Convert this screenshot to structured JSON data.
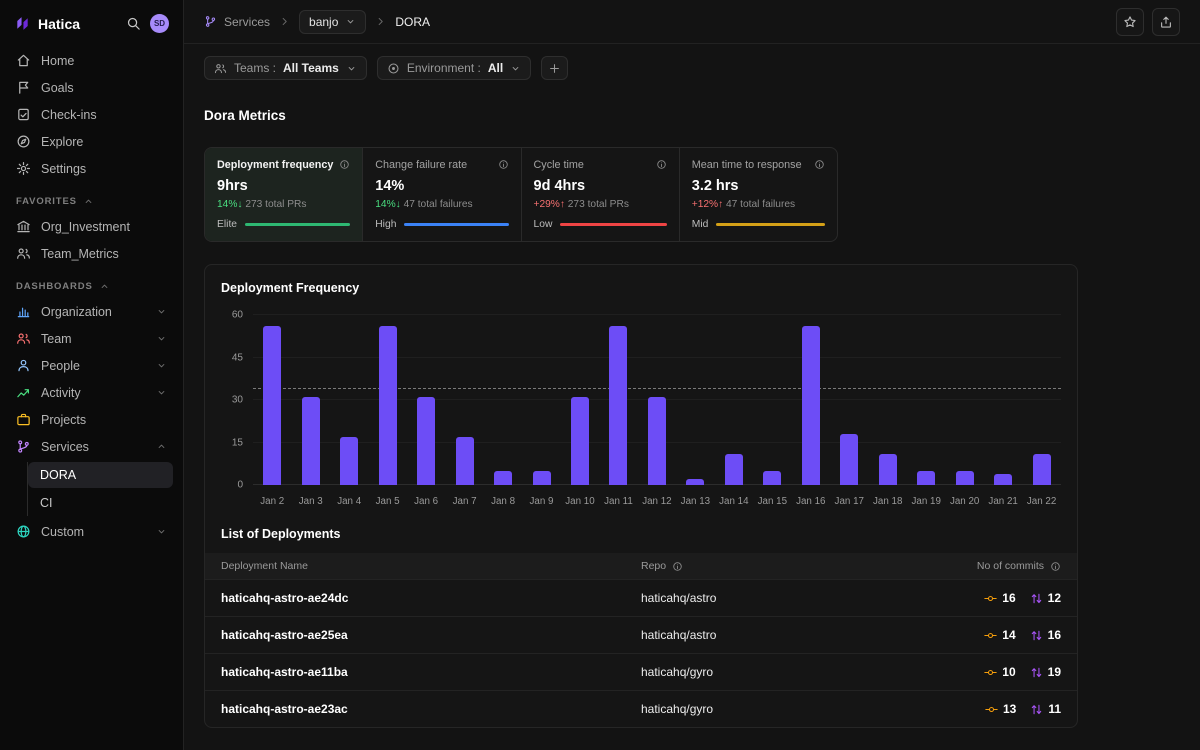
{
  "app": {
    "name": "Hatica",
    "avatar_initials": "SD"
  },
  "breadcrumb": {
    "section": "Services",
    "team": "banjo",
    "page": "DORA"
  },
  "filters": {
    "teams_label": "Teams :",
    "teams_value": "All Teams",
    "env_label": "Environment :",
    "env_value": "All"
  },
  "page": {
    "title": "Dora Metrics"
  },
  "sidebar": {
    "nav": [
      {
        "label": "Home",
        "icon": "home"
      },
      {
        "label": "Goals",
        "icon": "flag"
      },
      {
        "label": "Check-ins",
        "icon": "checkins"
      },
      {
        "label": "Explore",
        "icon": "explore"
      },
      {
        "label": "Settings",
        "icon": "gear"
      }
    ],
    "favorites": {
      "label": "FAVORITES",
      "items": [
        {
          "label": "Org_Investment",
          "icon": "bank"
        },
        {
          "label": "Team_Metrics",
          "icon": "users"
        }
      ]
    },
    "dashboards": {
      "label": "DASHBOARDS",
      "items": [
        {
          "label": "Organization",
          "icon": "org",
          "color": "#60a5fa",
          "expandable": true,
          "expanded": false
        },
        {
          "label": "Team",
          "icon": "team",
          "color": "#f87171",
          "expandable": true,
          "expanded": false
        },
        {
          "label": "People",
          "icon": "person",
          "color": "#93c5fd",
          "expandable": true,
          "expanded": false
        },
        {
          "label": "Activity",
          "icon": "activity",
          "color": "#4ade80",
          "expandable": true,
          "expanded": false
        },
        {
          "label": "Projects",
          "icon": "briefcase",
          "color": "#fbbf24",
          "expandable": false,
          "expanded": false
        },
        {
          "label": "Services",
          "icon": "branch",
          "color": "#c084fc",
          "expandable": true,
          "expanded": true,
          "children": [
            {
              "label": "DORA",
              "active": true
            },
            {
              "label": "CI",
              "active": false
            }
          ]
        },
        {
          "label": "Custom",
          "icon": "globe",
          "color": "#2dd4bf",
          "expandable": true,
          "expanded": false
        }
      ]
    }
  },
  "cards": [
    {
      "title": "Deployment frequency",
      "value": "9hrs",
      "delta": "14%",
      "delta_dir": "down",
      "subtext": "273 total PRs",
      "tier": "Elite",
      "tier_color": "#2eb872",
      "selected": true
    },
    {
      "title": "Change failure rate",
      "value": "14%",
      "delta": "14%",
      "delta_dir": "down",
      "subtext": "47 total failures",
      "tier": "High",
      "tier_color": "#3b82f6",
      "selected": false
    },
    {
      "title": "Cycle time",
      "value": "9d 4hrs",
      "delta": "+29%",
      "delta_dir": "up",
      "subtext": "273 total PRs",
      "tier": "Low",
      "tier_color": "#ef4444",
      "selected": false
    },
    {
      "title": "Mean time to response",
      "value": "3.2 hrs",
      "delta": "+12%",
      "delta_dir": "up",
      "subtext": "47 total failures",
      "tier": "Mid",
      "tier_color": "#d4a017",
      "selected": false
    }
  ],
  "chart_data": {
    "type": "bar",
    "title": "Deployment Frequency",
    "categories": [
      "Jan 2",
      "Jan 3",
      "Jan 4",
      "Jan 5",
      "Jan 6",
      "Jan 7",
      "Jan 8",
      "Jan 9",
      "Jan 10",
      "Jan 11",
      "Jan 12",
      "Jan 13",
      "Jan 14",
      "Jan 15",
      "Jan 16",
      "Jan 17",
      "Jan 18",
      "Jan 19",
      "Jan 20",
      "Jan 21",
      "Jan 22"
    ],
    "values": [
      56,
      31,
      17,
      56,
      31,
      17,
      5,
      5,
      31,
      56,
      31,
      2,
      11,
      5,
      56,
      18,
      11,
      5,
      5,
      4,
      11
    ],
    "xlabel": "",
    "ylabel": "",
    "ylim": [
      0,
      60
    ],
    "yticks": [
      0,
      15,
      30,
      45,
      60
    ],
    "avg_line": 34,
    "bar_color": "#6d4df6",
    "grid": true,
    "legend": false
  },
  "deployments": {
    "title": "List of Deployments",
    "columns": [
      "Deployment Name",
      "Repo",
      "No of commits"
    ],
    "commit_icon_color": "#f59e0b",
    "pr_icon_color": "#a855f7",
    "rows": [
      {
        "name": "haticahq-astro-ae24dc",
        "repo": "haticahq/astro",
        "commits": 16,
        "prs": 12
      },
      {
        "name": "haticahq-astro-ae25ea",
        "repo": "haticahq/astro",
        "commits": 14,
        "prs": 16
      },
      {
        "name": "haticahq-astro-ae11ba",
        "repo": "haticahq/gyro",
        "commits": 10,
        "prs": 19
      },
      {
        "name": "haticahq-astro-ae23ac",
        "repo": "haticahq/gyro",
        "commits": 13,
        "prs": 11
      }
    ]
  }
}
